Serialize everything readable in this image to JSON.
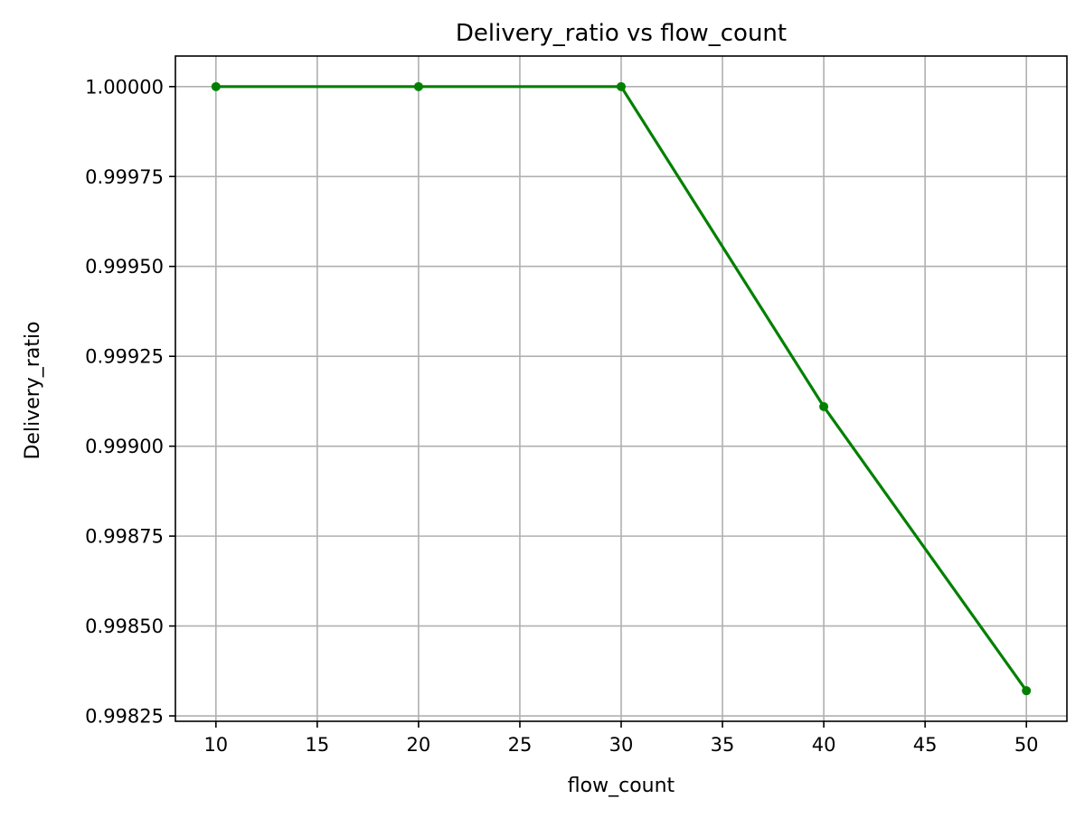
{
  "chart_data": {
    "type": "line",
    "title": "Delivery_ratio vs flow_count",
    "xlabel": "flow_count",
    "ylabel": "Delivery_ratio",
    "xlim": [
      8,
      52
    ],
    "ylim": [
      0.998235,
      1.000085
    ],
    "grid": true,
    "x_ticks": [
      10,
      15,
      20,
      25,
      30,
      35,
      40,
      45,
      50
    ],
    "x_tick_labels": [
      "10",
      "15",
      "20",
      "25",
      "30",
      "35",
      "40",
      "45",
      "50"
    ],
    "y_ticks": [
      0.99825,
      0.9985,
      0.99875,
      0.999,
      0.99925,
      0.9995,
      0.99975,
      1.0
    ],
    "y_tick_labels": [
      "0.99825",
      "0.99850",
      "0.99875",
      "0.99900",
      "0.99925",
      "0.99950",
      "0.99975",
      "1.00000"
    ],
    "series": [
      {
        "color": "#008000",
        "marker": "circle",
        "x": [
          10,
          20,
          30,
          40,
          50
        ],
        "y": [
          1.0,
          1.0,
          1.0,
          0.99911,
          0.99832
        ]
      }
    ]
  }
}
